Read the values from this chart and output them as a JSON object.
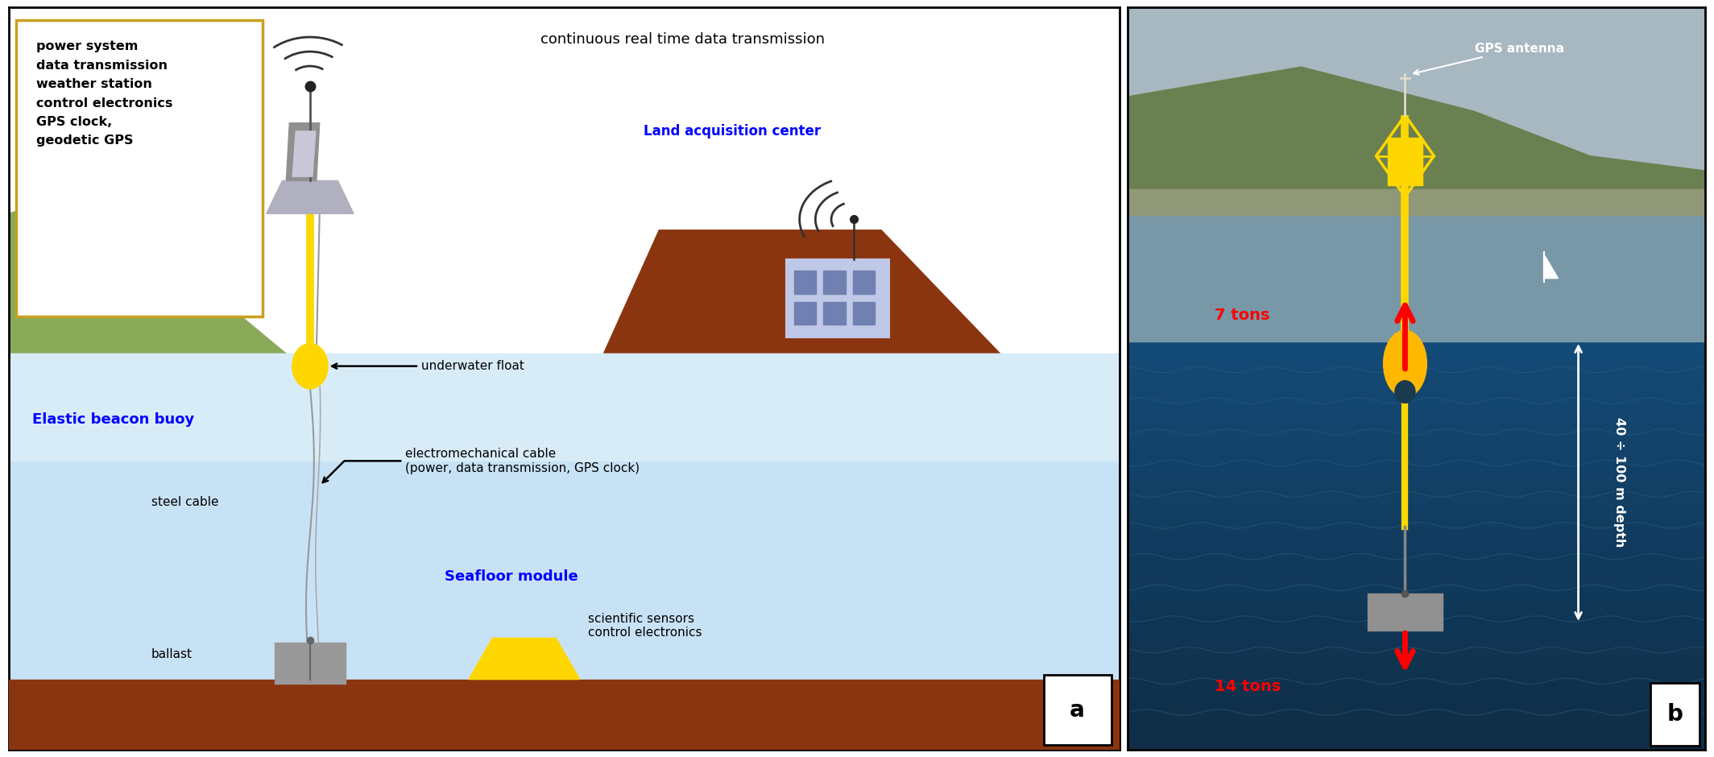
{
  "fig_width": 21.28,
  "fig_height": 9.4,
  "panel_a": {
    "sky_color": "#ffffff",
    "water_top_color": "#daeaf8",
    "water_bottom_color": "#b8d8f0",
    "seafloor_color": "#8B3510",
    "hill_left_color": "#8aaa5a",
    "hill_right_color": "#8B3510",
    "label_box_text": "power system\ndata transmission\nweather station\ncontrol electronics\nGPS clock,\ngeodetic GPS",
    "label_box_edge": "#c8a020",
    "title_text": "continuous real time data transmission",
    "elastic_beacon_text": "Elastic beacon buoy",
    "seafloor_module_text": "Seafloor module",
    "land_acq_text": "Land acquisition center",
    "underwater_float_text": "underwater float",
    "steel_cable_text": "steel cable",
    "ballast_text": "ballast",
    "electromech_line1": "electromechanical cable",
    "electromech_line2": "(power, data transmission, GPS clock)",
    "sci_sensors_text": "scientific sensors\ncontrol electronics",
    "panel_label": "a"
  },
  "panel_b": {
    "gps_antenna_text": "GPS antenna",
    "seven_tons_text": "7 tons",
    "fourteen_tons_text": "14 tons",
    "depth_text": "40 ÷ 100 m depth",
    "panel_label": "b"
  }
}
